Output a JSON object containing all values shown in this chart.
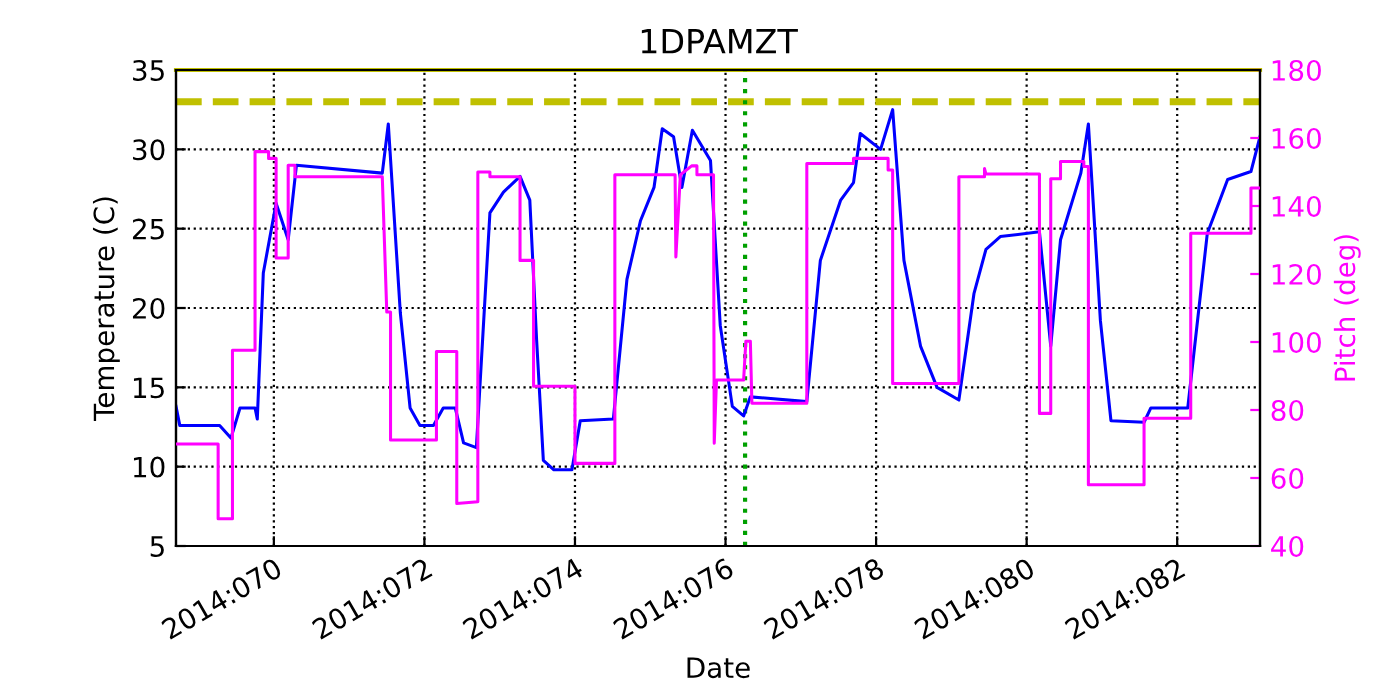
{
  "chart_data": {
    "type": "line",
    "title": "1DPAMZT",
    "xlabel": "Date",
    "ylabel": "Temperature (C)",
    "y2label": "Pitch (deg)",
    "xlim": [
      "2014-03-09T16:48",
      "2014-03-24T02:24"
    ],
    "ylim": [
      5,
      35
    ],
    "y2lim": [
      40,
      180
    ],
    "xticks": [
      {
        "value": "2014-03-11",
        "label": "2014:070"
      },
      {
        "value": "2014-03-13",
        "label": "2014:072"
      },
      {
        "value": "2014-03-15",
        "label": "2014:074"
      },
      {
        "value": "2014-03-17",
        "label": "2014:076"
      },
      {
        "value": "2014-03-19",
        "label": "2014:078"
      },
      {
        "value": "2014-03-21",
        "label": "2014:080"
      },
      {
        "value": "2014-03-23",
        "label": "2014:082"
      }
    ],
    "yticks": [
      5,
      10,
      15,
      20,
      25,
      30,
      35
    ],
    "y2ticks": [
      40,
      60,
      80,
      100,
      120,
      140,
      160,
      180
    ],
    "grid": true,
    "line_style": "solid",
    "marker": "none",
    "ref_lines": [
      {
        "axis": "y",
        "value": 33,
        "color": "#c0c000",
        "line_style": "dashed"
      },
      {
        "axis": "y",
        "value": 35,
        "color": "#c0c000",
        "line_style": "solid"
      },
      {
        "axis": "x",
        "value": "2014-03-17T06:14",
        "color": "#00a000",
        "line_style": "dotted"
      }
    ],
    "series": [
      {
        "color": "#0000ff",
        "x": [
          "2014-03-09T16:48",
          "2014-03-09T18:00",
          "2014-03-10T06:43",
          "2014-03-10T10:19",
          "2014-03-10T13:12",
          "2014-03-10T18:00",
          "2014-03-10T18:43",
          "2014-03-10T20:38",
          "2014-03-11T00:43",
          "2014-03-11T04:34",
          "2014-03-11T07:12",
          "2014-03-12T10:34",
          "2014-03-12T12:29",
          "2014-03-12T16:19",
          "2014-03-12T19:26",
          "2014-03-12T22:34",
          "2014-03-13T02:53",
          "2014-03-13T06:00",
          "2014-03-13T09:50",
          "2014-03-13T12:29",
          "2014-03-13T16:34",
          "2014-03-13T20:53",
          "2014-03-14T01:12",
          "2014-03-14T06:29",
          "2014-03-14T09:36",
          "2014-03-14T11:46",
          "2014-03-14T13:55",
          "2014-03-14T17:17",
          "2014-03-14T23:02",
          "2014-03-15T01:41",
          "2014-03-15T12:14",
          "2014-03-15T16:34",
          "2014-03-15T20:53",
          "2014-03-16T01:12",
          "2014-03-16T03:50",
          "2014-03-16T07:26",
          "2014-03-16T10:05",
          "2014-03-16T13:26",
          "2014-03-16T19:12",
          "2014-03-16T22:19",
          "2014-03-17T02:10",
          "2014-03-17T05:46",
          "2014-03-17T07:55",
          "2014-03-18T01:55",
          "2014-03-18T06:14",
          "2014-03-18T12:43",
          "2014-03-18T16:48",
          "2014-03-18T18:58",
          "2014-03-19T01:26",
          "2014-03-19T05:17",
          "2014-03-19T08:53",
          "2014-03-19T14:10",
          "2014-03-19T19:26",
          "2014-03-20T02:24",
          "2014-03-20T07:12",
          "2014-03-20T11:02",
          "2014-03-20T15:36",
          "2014-03-21T04:05",
          "2014-03-21T07:41",
          "2014-03-21T10:48",
          "2014-03-21T17:17",
          "2014-03-21T19:41",
          "2014-03-21T23:31",
          "2014-03-22T02:53",
          "2014-03-22T13:26",
          "2014-03-22T15:36",
          "2014-03-23T03:22",
          "2014-03-23T09:36",
          "2014-03-23T16:05",
          "2014-03-23T23:31",
          "2014-03-24T02:24"
        ],
        "values": [
          13.8,
          12.6,
          12.6,
          11.8,
          13.7,
          13.7,
          13.0,
          22.2,
          26.6,
          24.3,
          29.0,
          28.5,
          31.6,
          19.7,
          13.7,
          12.6,
          12.6,
          13.7,
          13.7,
          11.5,
          11.2,
          26.0,
          27.3,
          28.3,
          26.8,
          18.0,
          10.4,
          9.8,
          9.8,
          12.9,
          13.0,
          21.8,
          25.5,
          27.6,
          31.3,
          30.8,
          27.6,
          31.2,
          29.3,
          18.9,
          13.8,
          13.2,
          14.4,
          14.1,
          23.0,
          26.8,
          27.9,
          31.0,
          30.0,
          32.5,
          23.0,
          17.6,
          15.0,
          14.2,
          20.9,
          23.7,
          24.5,
          24.8,
          17.6,
          24.3,
          28.5,
          31.6,
          19.2,
          12.9,
          12.8,
          13.7,
          13.7,
          24.7,
          28.1,
          28.6,
          30.8
        ]
      },
      {
        "color": "#ff00ff",
        "axis": "y2",
        "x": [
          "2014-03-09T16:48",
          "2014-03-10T06:14",
          "2014-03-10T06:14",
          "2014-03-10T10:48",
          "2014-03-10T10:48",
          "2014-03-10T18:00",
          "2014-03-10T18:00",
          "2014-03-10T22:19",
          "2014-03-10T22:19",
          "2014-03-11T00:43",
          "2014-03-11T00:43",
          "2014-03-11T04:34",
          "2014-03-11T04:34",
          "2014-03-11T06:43",
          "2014-03-11T06:43",
          "2014-03-12T10:34",
          "2014-03-12T12:00",
          "2014-03-12T13:12",
          "2014-03-12T13:12",
          "2014-03-13T03:50",
          "2014-03-13T03:50",
          "2014-03-13T10:19",
          "2014-03-13T10:19",
          "2014-03-13T17:02",
          "2014-03-13T17:02",
          "2014-03-13T20:53",
          "2014-03-13T20:53",
          "2014-03-14T06:29",
          "2014-03-14T06:29",
          "2014-03-14T10:48",
          "2014-03-14T10:48",
          "2014-03-15T00:00",
          "2014-03-15T00:00",
          "2014-03-15T12:43",
          "2014-03-15T12:43",
          "2014-03-16T07:55",
          "2014-03-16T08:10",
          "2014-03-16T09:36",
          "2014-03-16T13:12",
          "2014-03-16T14:53",
          "2014-03-16T14:53",
          "2014-03-16T20:10",
          "2014-03-16T20:24",
          "2014-03-16T21:07",
          "2014-03-17T05:46",
          "2014-03-17T06:29",
          "2014-03-17T07:55",
          "2014-03-17T08:24",
          "2014-03-18T01:55",
          "2014-03-18T01:55",
          "2014-03-18T16:48",
          "2014-03-18T16:48",
          "2014-03-19T03:50",
          "2014-03-19T03:50",
          "2014-03-19T05:17",
          "2014-03-19T05:17",
          "2014-03-20T02:24",
          "2014-03-20T02:24",
          "2014-03-20T10:34",
          "2014-03-20T10:34",
          "2014-03-20T11:02",
          "2014-03-21T04:05",
          "2014-03-21T04:05",
          "2014-03-21T07:41",
          "2014-03-21T07:41",
          "2014-03-21T10:48",
          "2014-03-21T10:48",
          "2014-03-21T18:14",
          "2014-03-21T18:14",
          "2014-03-21T19:41",
          "2014-03-21T19:41",
          "2014-03-22T13:26",
          "2014-03-22T13:26",
          "2014-03-23T04:19",
          "2014-03-23T04:19",
          "2014-03-23T23:31",
          "2014-03-23T23:31",
          "2014-03-24T02:24"
        ],
        "values": [
          70,
          70,
          48,
          48,
          97.6,
          97.6,
          156,
          156,
          154,
          154,
          124.7,
          124.7,
          152,
          152,
          148.6,
          148.6,
          108.8,
          108.8,
          71.2,
          71.2,
          97.2,
          97.2,
          52.5,
          53,
          150,
          150,
          148.6,
          148.6,
          124,
          124,
          87,
          87,
          64.3,
          64.3,
          149.2,
          149.2,
          125,
          149.2,
          151.8,
          151.8,
          149.2,
          149.2,
          70.2,
          88.8,
          88.8,
          100.2,
          100.2,
          82,
          82,
          152.5,
          152.5,
          154,
          154,
          150.6,
          150.6,
          87.8,
          87.8,
          148.6,
          148.6,
          151,
          149.4,
          149.4,
          79,
          79,
          148,
          148,
          153.1,
          153.1,
          151.6,
          151.6,
          58,
          58,
          77.6,
          77.6,
          132,
          132,
          145.3,
          145.3
        ]
      }
    ]
  }
}
